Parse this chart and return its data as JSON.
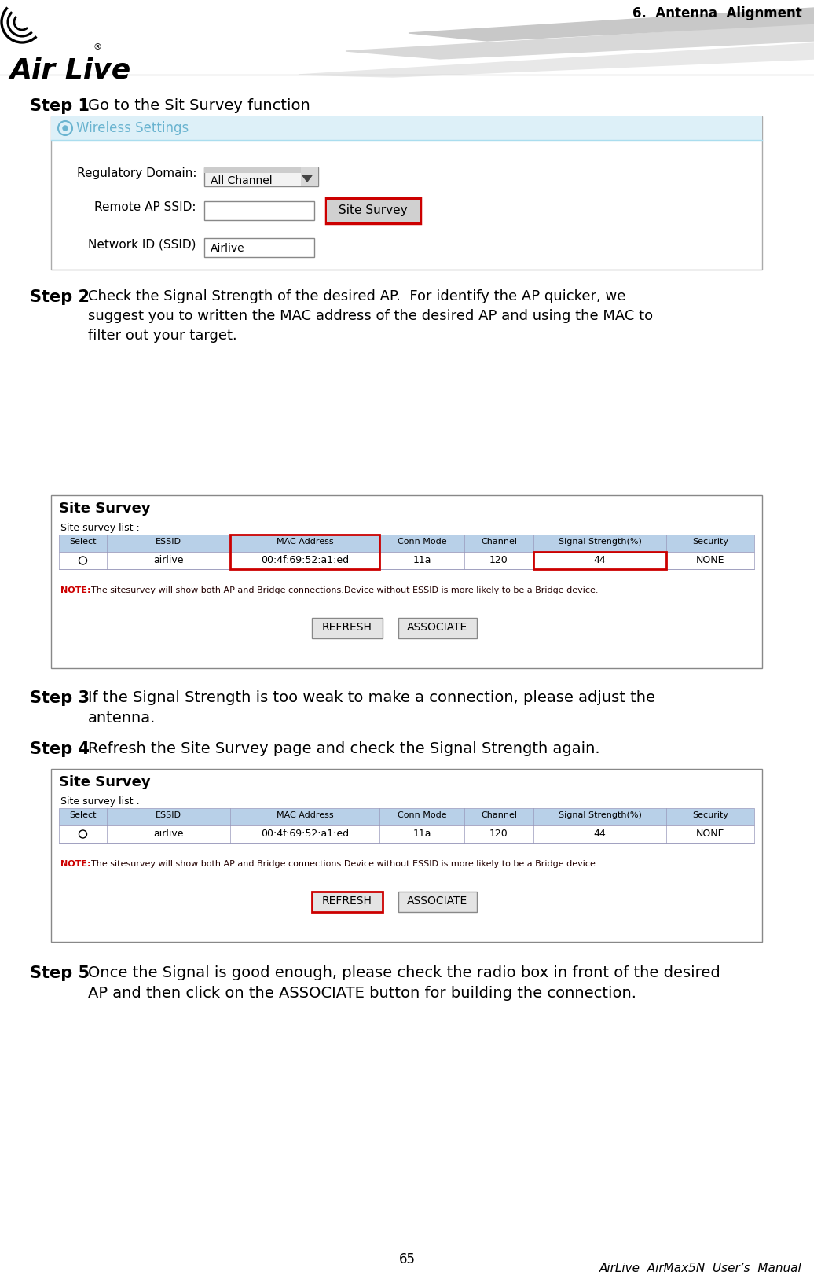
{
  "page_title": "6.  Antenna  Alignment",
  "footer_page": "65",
  "footer_manual": "AirLive  AirMax5N  User’s  Manual",
  "bg_color": "#ffffff",
  "step1_bold": "Step 1",
  "step2_bold": "Step 2",
  "step3_bold": "Step 3",
  "step4_bold": "Step 4",
  "step5_bold": "Step 5",
  "step1_text": "Go to the Sit Survey function",
  "step2_line1": "Check the Signal Strength of the desired AP.  For identify the AP quicker, we",
  "step2_line2": "suggest you to written the MAC address of the desired AP and using the MAC to",
  "step2_line3": "filter out your target.",
  "step3_line1": "If the Signal Strength is too weak to make a connection, please adjust the",
  "step3_line2": "antenna.",
  "step4_text": "Refresh the Site Survey page and check the Signal Strength again.",
  "step5_line1": "Once the Signal is good enough, please check the radio box in front of the desired",
  "step5_line2": "AP and then click on the ASSOCIATE button for building the connection.",
  "wireless_settings_title": "Wireless Settings",
  "wireless_settings_color": "#6ab4d0",
  "reg_domain_label": "Regulatory Domain:",
  "reg_domain_value": "All Channel",
  "remote_ap_label": "Remote AP SSID:",
  "site_survey_btn": "Site Survey",
  "network_id_label": "Network ID (SSID)",
  "network_id_value": "Airlive",
  "site_survey_title": "Site Survey",
  "site_survey_list_label": "Site survey list :",
  "table_headers": [
    "Select",
    "ESSID",
    "MAC Address",
    "Conn Mode",
    "Channel",
    "Signal Strength(%)",
    "Security"
  ],
  "table_row": [
    "radio",
    "airlive",
    "00:4f:69:52:a1:ed",
    "11a",
    "120",
    "44",
    "NONE"
  ],
  "table_header_bg": "#b8d0e8",
  "note_bold": "NOTE:",
  "note_rest": "  The sitesurvey will show both AP and Bridge connections.Device without ESSID is more likely to be a Bridge device.",
  "note_color": "#cc0000",
  "refresh_btn": "REFRESH",
  "associate_btn": "ASSOCIATE",
  "red_color": "#cc0000",
  "swoosh_c1": "#d8d8d8",
  "swoosh_c2": "#e8e8e8",
  "swoosh_c3": "#c8c8c8"
}
